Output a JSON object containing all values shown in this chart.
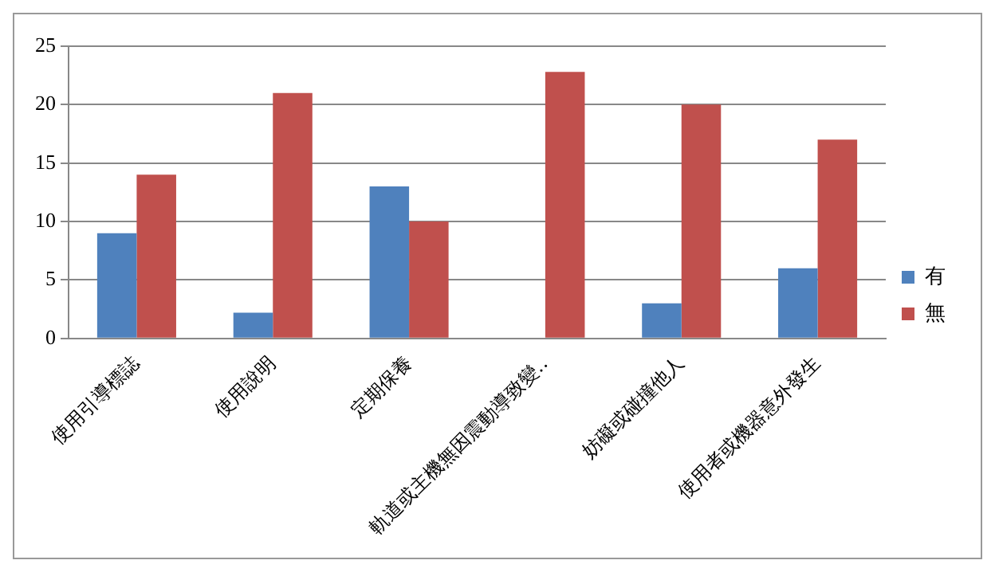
{
  "chart_data": {
    "type": "bar",
    "categories": [
      "使用引導標誌",
      "使用說明",
      "定期保養",
      "軌道或主機無因震動導致變‥",
      "妨礙或碰撞他人",
      "使用者或機器意外發生"
    ],
    "series": [
      {
        "name": "有",
        "color": "#4f81bd",
        "values": [
          9,
          2.2,
          13,
          0,
          3,
          6
        ]
      },
      {
        "name": "無",
        "color": "#c0504d",
        "values": [
          14,
          21,
          10,
          22.8,
          20,
          17
        ]
      }
    ],
    "ylim": [
      0,
      25
    ],
    "yticks": [
      0,
      5,
      10,
      15,
      20,
      25
    ],
    "grid": "y",
    "legend": "right"
  }
}
